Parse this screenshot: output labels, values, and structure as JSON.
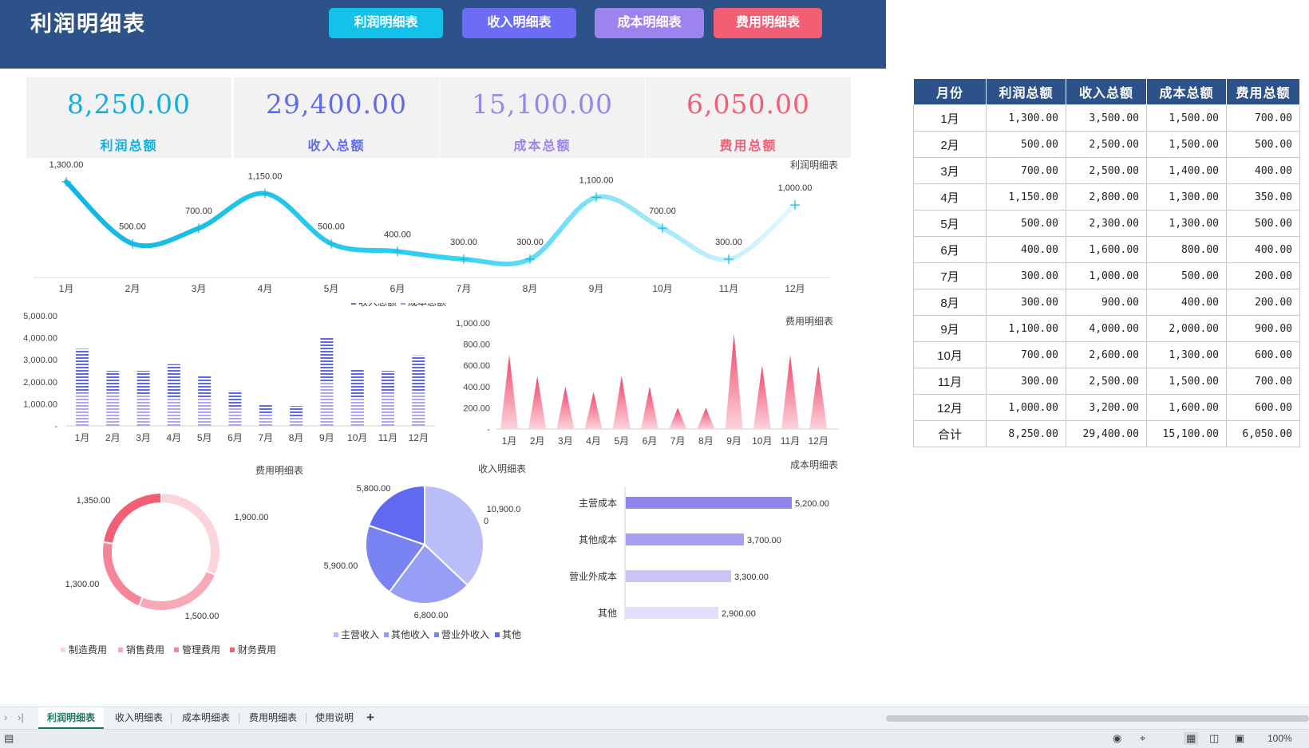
{
  "header": {
    "title": "利润明细表",
    "buttons": [
      {
        "label": "利润明细表",
        "color": "#12c2e9"
      },
      {
        "label": "收入明细表",
        "color": "#6c6cf5"
      },
      {
        "label": "成本明细表",
        "color": "#9b84ee"
      },
      {
        "label": "费用明细表",
        "color": "#f25f75"
      }
    ]
  },
  "kpis": [
    {
      "value": "8,250.00",
      "label": "利润总额",
      "color": "#12aede"
    },
    {
      "value": "29,400.00",
      "label": "收入总额",
      "color": "#5f6be8"
    },
    {
      "value": "15,100.00",
      "label": "成本总额",
      "color": "#9b84ee"
    },
    {
      "value": "6,050.00",
      "label": "费用总额",
      "color": "#f25f75"
    }
  ],
  "chart_data": [
    {
      "type": "line",
      "title": "利润明细表",
      "categories": [
        "1月",
        "2月",
        "3月",
        "4月",
        "5月",
        "6月",
        "7月",
        "8月",
        "9月",
        "10月",
        "11月",
        "12月"
      ],
      "values": [
        1300,
        500,
        700,
        1150,
        500,
        400,
        300,
        300,
        1100,
        700,
        300,
        1000
      ],
      "data_labels": [
        "1,300.00",
        "500.00",
        "700.00",
        "1,150.00",
        "500.00",
        "400.00",
        "300.00",
        "300.00",
        "1,100.00",
        "700.00",
        "300.00",
        "1,000.00"
      ]
    },
    {
      "type": "bar",
      "legend": [
        "收入总额",
        "成本总额"
      ],
      "legend_placement": "top-right",
      "categories": [
        "1月",
        "2月",
        "3月",
        "4月",
        "5月",
        "6月",
        "7月",
        "8月",
        "9月",
        "10月",
        "11月",
        "12月"
      ],
      "series": [
        {
          "name": "收入总额",
          "values": [
            3500,
            2500,
            2500,
            2800,
            2300,
            1600,
            1000,
            900,
            4000,
            2600,
            2500,
            3200
          ]
        },
        {
          "name": "成本总额",
          "values": [
            1500,
            1500,
            1400,
            1300,
            1300,
            800,
            500,
            400,
            2000,
            1300,
            1500,
            1600
          ]
        }
      ],
      "yticks": [
        "5,000.00",
        "4,000.00",
        "3,000.00",
        "2,000.00",
        "1,000.00",
        "-"
      ],
      "ylim": [
        0,
        5000
      ]
    },
    {
      "type": "area",
      "title": "费用明细表",
      "categories": [
        "1月",
        "2月",
        "3月",
        "4月",
        "5月",
        "6月",
        "7月",
        "8月",
        "9月",
        "10月",
        "11月",
        "12月"
      ],
      "values": [
        700,
        500,
        400,
        350,
        500,
        400,
        200,
        200,
        900,
        600,
        700,
        600
      ],
      "yticks": [
        "1,000.00",
        "800.00",
        "600.00",
        "400.00",
        "200.00",
        "-"
      ],
      "ylim": [
        0,
        1000
      ]
    },
    {
      "type": "pie",
      "title": "费用明细表",
      "categories": [
        "制造费用",
        "销售费用",
        "管理费用",
        "财务费用"
      ],
      "values": [
        1900,
        1500,
        1300,
        1350
      ],
      "data_labels": [
        "1,900.00",
        "1,500.00",
        "1,300.00",
        "1,350.00"
      ],
      "colors": [
        "#fcd5dc",
        "#f8a9b7",
        "#f58599",
        "#f25f75"
      ]
    },
    {
      "type": "pie",
      "title": "收入明细表",
      "categories": [
        "主营收入",
        "其他收入",
        "营业外收入",
        "其他"
      ],
      "values": [
        10900,
        6800,
        5900,
        5800
      ],
      "data_labels": [
        "10,900.0\n0",
        "6,800.00",
        "5,900.00",
        "5,800.00"
      ],
      "colors": [
        "#b9bdf9",
        "#969ef6",
        "#7a83f2",
        "#6069f0"
      ]
    },
    {
      "type": "bar",
      "orientation": "horizontal",
      "title": "成本明细表",
      "categories": [
        "主营成本",
        "其他成本",
        "营业外成本",
        "其他"
      ],
      "values": [
        5200,
        3700,
        3300,
        2900
      ],
      "data_labels": [
        "5,200.00",
        "3,700.00",
        "3,300.00",
        "2,900.00"
      ],
      "colors": [
        "#8f85ee",
        "#a89ff1",
        "#c9c3f6",
        "#e3defa"
      ]
    }
  ],
  "table": {
    "headers": [
      "月份",
      "利润总额",
      "收入总额",
      "成本总额",
      "费用总额"
    ],
    "rows": [
      [
        "1月",
        "1,300.00",
        "3,500.00",
        "1,500.00",
        "700.00"
      ],
      [
        "2月",
        "500.00",
        "2,500.00",
        "1,500.00",
        "500.00"
      ],
      [
        "3月",
        "700.00",
        "2,500.00",
        "1,400.00",
        "400.00"
      ],
      [
        "4月",
        "1,150.00",
        "2,800.00",
        "1,300.00",
        "350.00"
      ],
      [
        "5月",
        "500.00",
        "2,300.00",
        "1,300.00",
        "500.00"
      ],
      [
        "6月",
        "400.00",
        "1,600.00",
        "800.00",
        "400.00"
      ],
      [
        "7月",
        "300.00",
        "1,000.00",
        "500.00",
        "200.00"
      ],
      [
        "8月",
        "300.00",
        "900.00",
        "400.00",
        "200.00"
      ],
      [
        "9月",
        "1,100.00",
        "4,000.00",
        "2,000.00",
        "900.00"
      ],
      [
        "10月",
        "700.00",
        "2,600.00",
        "1,300.00",
        "600.00"
      ],
      [
        "11月",
        "300.00",
        "2,500.00",
        "1,500.00",
        "700.00"
      ],
      [
        "12月",
        "1,000.00",
        "3,200.00",
        "1,600.00",
        "600.00"
      ],
      [
        "合计",
        "8,250.00",
        "29,400.00",
        "15,100.00",
        "6,050.00"
      ]
    ]
  },
  "sheet_tabs": [
    "利润明细表",
    "收入明细表",
    "成本明细表",
    "费用明细表",
    "使用说明"
  ],
  "active_tab": "利润明细表",
  "status": {
    "zoom": "100%"
  },
  "icons": {
    "nav_prev": "›",
    "nav_last": "›|",
    "add_sheet": "+",
    "view_eye": "◉",
    "view_locate": "⌖",
    "view_normal": "▦",
    "view_page": "◫",
    "view_break": "▣",
    "status_doc": "▤"
  }
}
